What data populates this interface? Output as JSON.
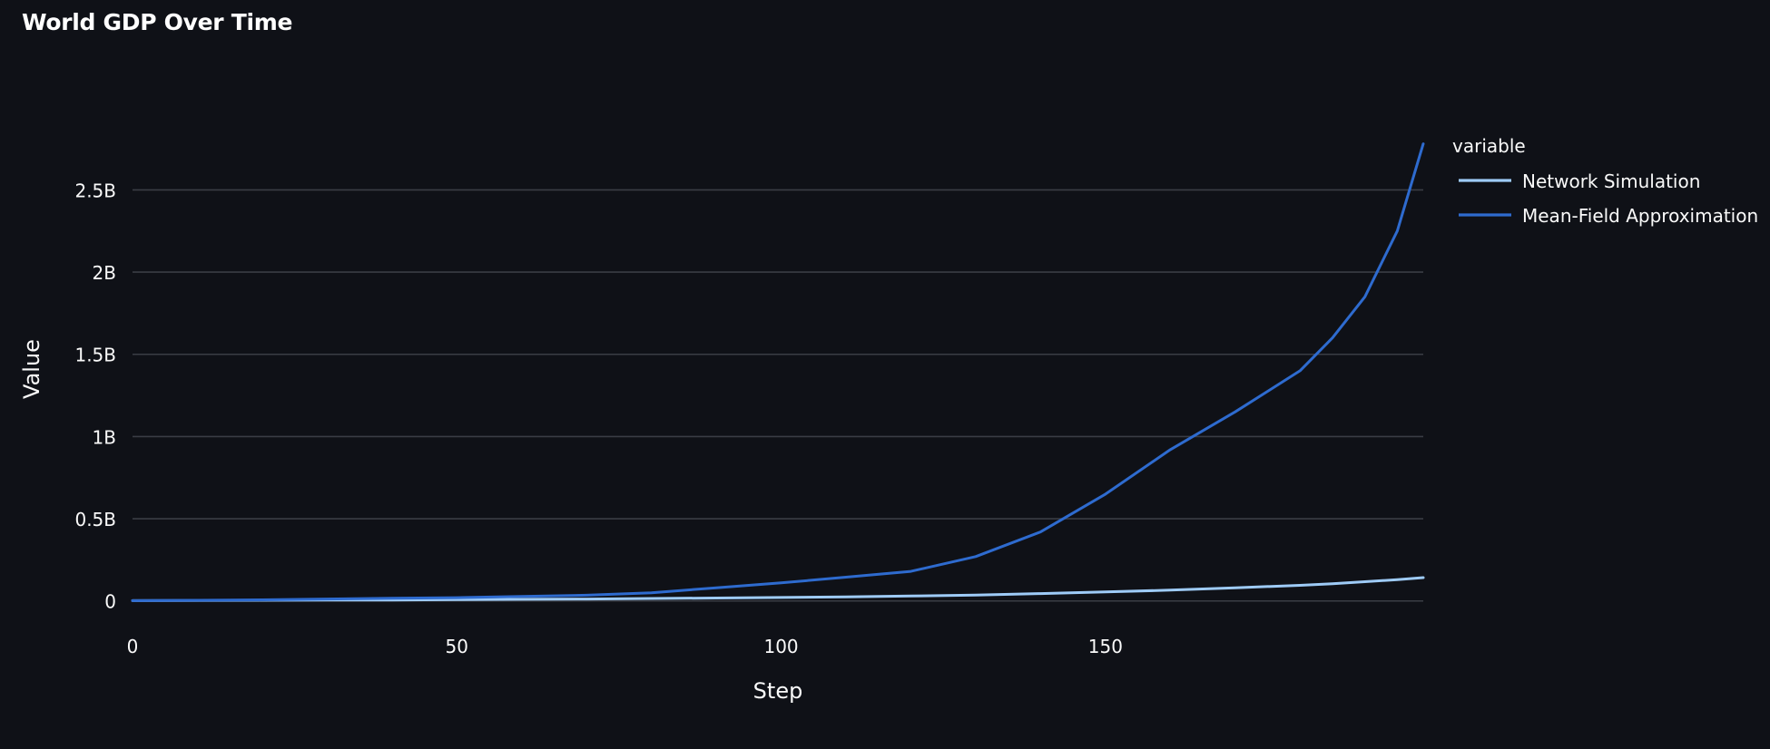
{
  "chart_data": {
    "type": "line",
    "title": "World GDP Over Time",
    "xlabel": "Step",
    "ylabel": "Value",
    "xlim": [
      0,
      199
    ],
    "ylim": [
      -40000000,
      2800000000
    ],
    "x_ticks": [
      0,
      50,
      100,
      150
    ],
    "x_tick_labels": [
      "0",
      "50",
      "100",
      "150"
    ],
    "y_ticks": [
      0,
      500000000,
      1000000000,
      1500000000,
      2000000000,
      2500000000
    ],
    "y_tick_labels": [
      "0",
      "0.5B",
      "1B",
      "1.5B",
      "2B",
      "2.5B"
    ],
    "grid": true,
    "legend": {
      "title": "variable",
      "placement": "top-right outside"
    },
    "x": [
      0,
      10,
      20,
      30,
      40,
      50,
      60,
      70,
      80,
      90,
      100,
      110,
      120,
      130,
      140,
      150,
      160,
      170,
      180,
      185,
      190,
      195,
      199
    ],
    "series": [
      {
        "name": "Network Simulation",
        "color": "#9ecbf7",
        "values": [
          2000000,
          3000000,
          4000000,
          5000000,
          6000000,
          8000000,
          10000000,
          12000000,
          15000000,
          18000000,
          21000000,
          25000000,
          30000000,
          36000000,
          45000000,
          55000000,
          66000000,
          80000000,
          95000000,
          105000000,
          117000000,
          130000000,
          142000000
        ]
      },
      {
        "name": "Mean-Field Approximation",
        "color": "#2e6bcf",
        "values": [
          2000000,
          4000000,
          7000000,
          12000000,
          17000000,
          20000000,
          28000000,
          35000000,
          50000000,
          80000000,
          110000000,
          145000000,
          180000000,
          270000000,
          420000000,
          650000000,
          920000000,
          1150000000,
          1400000000,
          1600000000,
          1850000000,
          2250000000,
          2780000000
        ]
      }
    ]
  }
}
